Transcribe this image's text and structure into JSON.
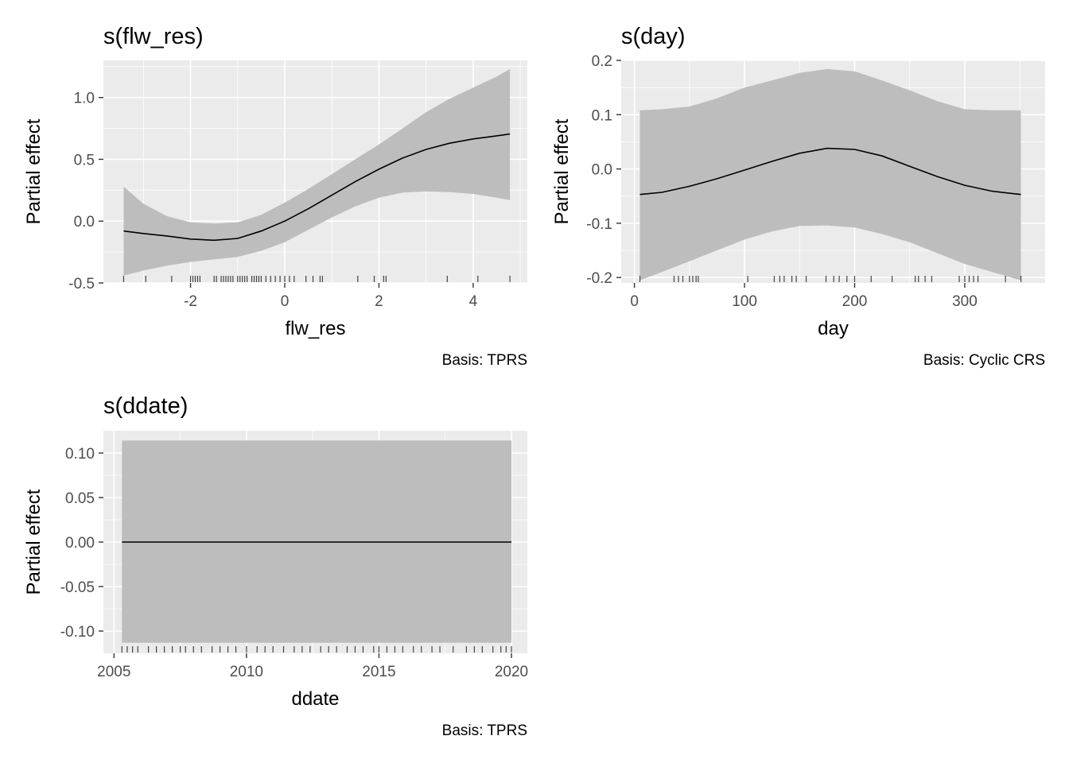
{
  "chart_data": [
    {
      "type": "line",
      "title": "s(flw_res)",
      "xlabel": "flw_res",
      "ylabel": "Partial effect",
      "caption": "Basis: TPRS",
      "xlim": [
        -3.85,
        5.15
      ],
      "ylim": [
        -0.5,
        1.3
      ],
      "xticks": [
        -2,
        0,
        2,
        4
      ],
      "xtick_labels": [
        "-2",
        "0",
        "2",
        "4"
      ],
      "yticks": [
        -0.5,
        0.0,
        0.5,
        1.0
      ],
      "ytick_labels": [
        "-0.5",
        "0.0",
        "0.5",
        "1.0"
      ],
      "grid": true,
      "x": [
        -3.42,
        -3.0,
        -2.5,
        -2.0,
        -1.5,
        -1.0,
        -0.5,
        0.0,
        0.5,
        1.0,
        1.5,
        2.0,
        2.5,
        3.0,
        3.5,
        4.0,
        4.5,
        4.78
      ],
      "y": [
        -0.08,
        -0.1,
        -0.12,
        -0.145,
        -0.155,
        -0.14,
        -0.08,
        0.0,
        0.1,
        0.21,
        0.32,
        0.42,
        0.51,
        0.58,
        0.63,
        0.665,
        0.69,
        0.705
      ],
      "lower": [
        -0.44,
        -0.4,
        -0.36,
        -0.33,
        -0.31,
        -0.29,
        -0.24,
        -0.17,
        -0.07,
        0.03,
        0.12,
        0.19,
        0.23,
        0.24,
        0.235,
        0.22,
        0.19,
        0.17
      ],
      "upper": [
        0.28,
        0.14,
        0.04,
        -0.01,
        -0.02,
        -0.01,
        0.05,
        0.15,
        0.26,
        0.38,
        0.5,
        0.62,
        0.75,
        0.88,
        0.99,
        1.08,
        1.17,
        1.23
      ],
      "rug": [
        -3.42,
        -2.95,
        -2.4,
        -2.0,
        -1.95,
        -1.9,
        -1.85,
        -1.8,
        -1.5,
        -1.45,
        -1.35,
        -1.3,
        -1.25,
        -1.2,
        -1.15,
        -1.1,
        -1.0,
        -0.95,
        -0.9,
        -0.85,
        -0.8,
        -0.7,
        -0.65,
        -0.6,
        -0.55,
        -0.5,
        -0.4,
        -0.3,
        -0.2,
        -0.1,
        0.0,
        0.1,
        0.2,
        0.45,
        0.6,
        0.75,
        0.8,
        1.55,
        1.9,
        2.1,
        2.15,
        3.45,
        4.1,
        4.78
      ]
    },
    {
      "type": "line",
      "title": "s(day)",
      "xlabel": "day",
      "ylabel": "Partial effect",
      "caption": "Basis: Cyclic CRS",
      "xlim": [
        -12,
        373
      ],
      "ylim": [
        -0.21,
        0.2
      ],
      "xticks": [
        0,
        100,
        200,
        300
      ],
      "xtick_labels": [
        "0",
        "100",
        "200",
        "300"
      ],
      "yticks": [
        -0.2,
        -0.1,
        0.0,
        0.1,
        0.2
      ],
      "ytick_labels": [
        "-0.2",
        "-0.1",
        "0.0",
        "0.1",
        "0.2"
      ],
      "grid": true,
      "x": [
        5,
        25,
        50,
        75,
        100,
        125,
        150,
        175,
        200,
        225,
        250,
        275,
        300,
        325,
        351
      ],
      "y": [
        -0.047,
        -0.043,
        -0.032,
        -0.018,
        -0.002,
        0.014,
        0.029,
        0.038,
        0.036,
        0.024,
        0.005,
        -0.014,
        -0.03,
        -0.041,
        -0.047
      ],
      "lower": [
        -0.205,
        -0.19,
        -0.17,
        -0.15,
        -0.13,
        -0.115,
        -0.105,
        -0.104,
        -0.108,
        -0.12,
        -0.135,
        -0.155,
        -0.175,
        -0.19,
        -0.205
      ],
      "upper": [
        0.108,
        0.11,
        0.115,
        0.13,
        0.15,
        0.163,
        0.177,
        0.184,
        0.18,
        0.163,
        0.145,
        0.125,
        0.11,
        0.108,
        0.108
      ],
      "rug": [
        5,
        36,
        40,
        44,
        50,
        53,
        56,
        58,
        103,
        127,
        132,
        136,
        143,
        147,
        156,
        174,
        181,
        186,
        193,
        200,
        215,
        234,
        255,
        258,
        264,
        270,
        295,
        300,
        304,
        308,
        312,
        337,
        351
      ]
    },
    {
      "type": "line",
      "title": "s(ddate)",
      "xlabel": "ddate",
      "ylabel": "Partial effect",
      "caption": "Basis: TPRS",
      "xlim": [
        2004.6,
        2020.6
      ],
      "ylim": [
        -0.125,
        0.125
      ],
      "xticks": [
        2005,
        2010,
        2015,
        2020
      ],
      "xtick_labels": [
        "2005",
        "2010",
        "2015",
        "2020"
      ],
      "yticks": [
        -0.1,
        -0.05,
        0.0,
        0.05,
        0.1
      ],
      "ytick_labels": [
        "-0.10",
        "-0.05",
        "0.00",
        "0.05",
        "0.10"
      ],
      "grid": true,
      "x": [
        2005.3,
        2020.0
      ],
      "y": [
        0.0,
        0.0
      ],
      "lower": [
        -0.113,
        -0.113
      ],
      "upper": [
        0.114,
        0.114
      ],
      "rug": [
        2005.3,
        2005.5,
        2005.7,
        2005.9,
        2006.3,
        2006.6,
        2006.9,
        2007.2,
        2007.5,
        2007.7,
        2008.0,
        2008.3,
        2008.7,
        2009.0,
        2009.3,
        2009.6,
        2010.0,
        2010.4,
        2010.7,
        2011.0,
        2011.4,
        2011.8,
        2012.1,
        2012.4,
        2012.8,
        2013.1,
        2013.4,
        2013.8,
        2014.1,
        2014.4,
        2014.8,
        2015.0,
        2015.3,
        2015.6,
        2015.9,
        2016.3,
        2016.6,
        2017.0,
        2017.3,
        2017.8,
        2018.3,
        2018.6,
        2018.9,
        2019.3,
        2019.6,
        2019.8,
        2020.0
      ]
    }
  ]
}
